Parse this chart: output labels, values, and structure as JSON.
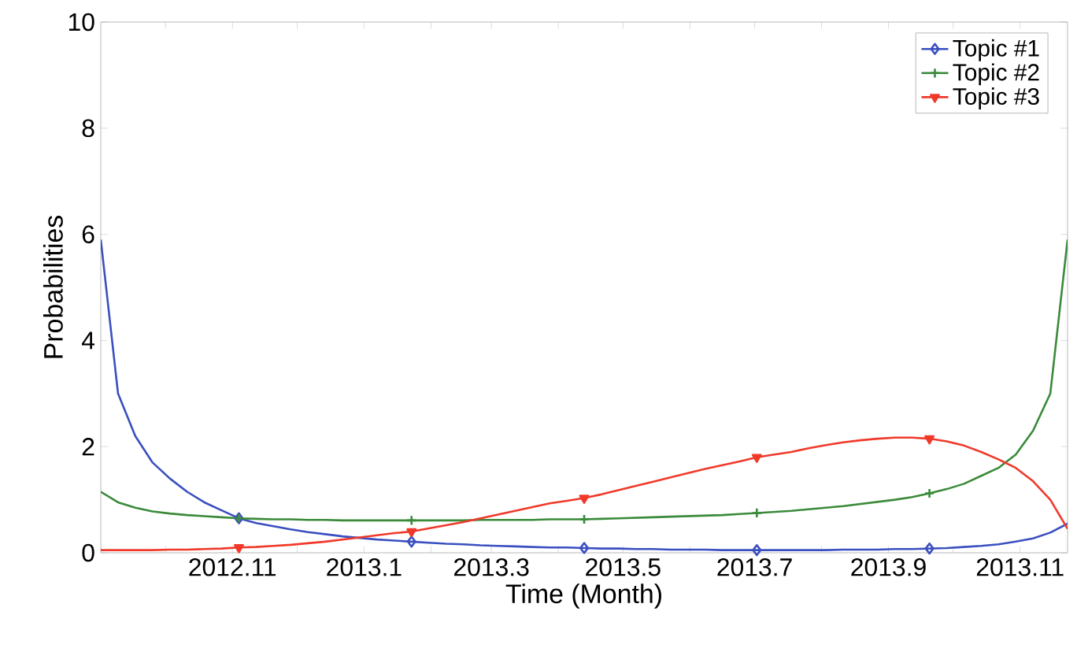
{
  "chart_data": {
    "type": "line",
    "xlabel": "Time (Month)",
    "ylabel": "Probabilities",
    "x": [
      "2012-09-01",
      "2012-09-09",
      "2012-09-17",
      "2012-09-25",
      "2012-10-03",
      "2012-10-11",
      "2012-10-19",
      "2012-10-27",
      "2012-11-04",
      "2012-11-12",
      "2012-11-20",
      "2012-11-28",
      "2012-12-06",
      "2012-12-14",
      "2012-12-22",
      "2012-12-30",
      "2013-01-07",
      "2013-01-15",
      "2013-01-23",
      "2013-01-31",
      "2013-02-08",
      "2013-02-16",
      "2013-02-24",
      "2013-03-04",
      "2013-03-12",
      "2013-03-20",
      "2013-03-28",
      "2013-04-05",
      "2013-04-13",
      "2013-04-21",
      "2013-04-29",
      "2013-05-07",
      "2013-05-15",
      "2013-05-23",
      "2013-05-31",
      "2013-06-08",
      "2013-06-16",
      "2013-06-24",
      "2013-07-02",
      "2013-07-10",
      "2013-07-18",
      "2013-07-26",
      "2013-08-03",
      "2013-08-11",
      "2013-08-19",
      "2013-08-27",
      "2013-09-04",
      "2013-09-12",
      "2013-09-20",
      "2013-09-28",
      "2013-10-06",
      "2013-10-14",
      "2013-10-22",
      "2013-10-30",
      "2013-11-07",
      "2013-11-15",
      "2013-11-23"
    ],
    "series": [
      {
        "name": "Topic #1",
        "color": "#3a4fc0",
        "values": [
          5.9,
          3.0,
          2.2,
          1.7,
          1.4,
          1.15,
          0.95,
          0.8,
          0.65,
          0.56,
          0.5,
          0.44,
          0.39,
          0.35,
          0.31,
          0.28,
          0.25,
          0.23,
          0.21,
          0.19,
          0.17,
          0.16,
          0.14,
          0.13,
          0.12,
          0.11,
          0.1,
          0.1,
          0.09,
          0.08,
          0.08,
          0.07,
          0.07,
          0.06,
          0.06,
          0.06,
          0.05,
          0.05,
          0.05,
          0.05,
          0.05,
          0.05,
          0.05,
          0.06,
          0.06,
          0.06,
          0.07,
          0.07,
          0.08,
          0.09,
          0.11,
          0.13,
          0.16,
          0.21,
          0.27,
          0.38,
          0.55
        ]
      },
      {
        "name": "Topic #2",
        "color": "#3a8a3a",
        "values": [
          1.15,
          0.95,
          0.85,
          0.78,
          0.74,
          0.71,
          0.69,
          0.67,
          0.65,
          0.64,
          0.63,
          0.63,
          0.62,
          0.62,
          0.61,
          0.61,
          0.61,
          0.61,
          0.61,
          0.61,
          0.61,
          0.61,
          0.62,
          0.62,
          0.62,
          0.62,
          0.63,
          0.63,
          0.63,
          0.64,
          0.65,
          0.66,
          0.67,
          0.68,
          0.69,
          0.7,
          0.71,
          0.73,
          0.75,
          0.77,
          0.79,
          0.82,
          0.85,
          0.88,
          0.92,
          0.96,
          1.0,
          1.05,
          1.12,
          1.2,
          1.3,
          1.45,
          1.6,
          1.85,
          2.3,
          3.0,
          5.9
        ]
      },
      {
        "name": "Topic #3",
        "color": "#f0392a",
        "values": [
          0.05,
          0.05,
          0.05,
          0.05,
          0.06,
          0.06,
          0.07,
          0.08,
          0.1,
          0.11,
          0.13,
          0.15,
          0.18,
          0.21,
          0.25,
          0.29,
          0.33,
          0.37,
          0.4,
          0.46,
          0.52,
          0.58,
          0.65,
          0.72,
          0.79,
          0.86,
          0.93,
          0.98,
          1.03,
          1.1,
          1.18,
          1.26,
          1.34,
          1.42,
          1.5,
          1.58,
          1.65,
          1.72,
          1.8,
          1.85,
          1.9,
          1.97,
          2.03,
          2.08,
          2.12,
          2.15,
          2.17,
          2.17,
          2.15,
          2.1,
          2.02,
          1.9,
          1.76,
          1.6,
          1.35,
          1.0,
          0.45
        ]
      },
      {
        "type": "scatter",
        "color": "#3a4fc0",
        "marker": "diamond",
        "x": [
          "2012-11-04",
          "2013-01-23",
          "2013-04-13",
          "2013-07-02",
          "2013-09-20"
        ],
        "values": [
          0.65,
          0.21,
          0.09,
          0.05,
          0.08
        ]
      },
      {
        "type": "scatter",
        "color": "#3a8a3a",
        "marker": "cross",
        "x": [
          "2012-11-04",
          "2013-01-23",
          "2013-04-13",
          "2013-07-02",
          "2013-09-20"
        ],
        "values": [
          0.65,
          0.61,
          0.63,
          0.75,
          1.12
        ]
      },
      {
        "type": "scatter",
        "color": "#f0392a",
        "marker": "triangle",
        "x": [
          "2012-11-04",
          "2013-01-23",
          "2013-04-13",
          "2013-07-02",
          "2013-09-20"
        ],
        "values": [
          0.1,
          0.4,
          1.03,
          1.8,
          2.15
        ]
      }
    ],
    "xlim": [
      "2012-09-01",
      "2013-11-23"
    ],
    "ylim": [
      0,
      10
    ],
    "xticks": [
      {
        "value": "2012-10",
        "label": null
      },
      {
        "value": "2012-11",
        "label": "2012.11"
      },
      {
        "value": "2012-12",
        "label": null
      },
      {
        "value": "2013-01",
        "label": "2013.1"
      },
      {
        "value": "2013-02",
        "label": null
      },
      {
        "value": "2013-03",
        "label": "2013.3"
      },
      {
        "value": "2013-04",
        "label": null
      },
      {
        "value": "2013-05",
        "label": "2013.5"
      },
      {
        "value": "2013-06",
        "label": null
      },
      {
        "value": "2013-07",
        "label": "2013.7"
      },
      {
        "value": "2013-08",
        "label": null
      },
      {
        "value": "2013-09",
        "label": "2013.9"
      },
      {
        "value": "2013-10",
        "label": null
      },
      {
        "value": "2013-11",
        "label": "2013.11"
      }
    ],
    "yticks": [
      0,
      2,
      4,
      6,
      8,
      10
    ],
    "legend": "top right",
    "grid": false,
    "line_style": "solid"
  }
}
